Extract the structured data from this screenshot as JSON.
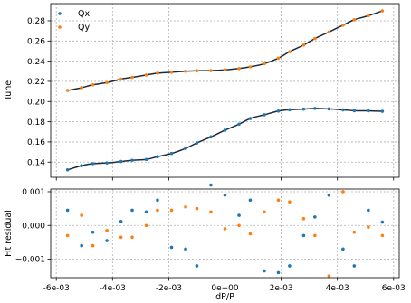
{
  "chart_data": [
    {
      "type": "scatter",
      "ylabel": "Tune",
      "xlim": [
        -0.0062,
        0.0062
      ],
      "ylim": [
        0.125,
        0.297
      ],
      "yticks": [
        0.14,
        0.16,
        0.18,
        0.2,
        0.22,
        0.24,
        0.26,
        0.28
      ],
      "ytick_labels": [
        "0.14",
        "0.16",
        "0.18",
        "0.20",
        "0.22",
        "0.24",
        "0.26",
        "0.28"
      ],
      "grid": true,
      "legend": {
        "placement": "top-left",
        "entries": [
          "Qx",
          "Qy"
        ]
      },
      "fit_line_color": "#1b2a3a",
      "series": [
        {
          "name": "Qx",
          "color": "#1f77b4",
          "x": [
            -0.0056,
            -0.0051,
            -0.0047,
            -0.0042,
            -0.0037,
            -0.0033,
            -0.0028,
            -0.0024,
            -0.0019,
            -0.0014,
            -0.001,
            -0.0005,
            0.0,
            0.0005,
            0.0009,
            0.0014,
            0.0019,
            0.0023,
            0.0028,
            0.0032,
            0.0037,
            0.0042,
            0.0046,
            0.0051,
            0.0056
          ],
          "y": [
            0.1324,
            0.1365,
            0.1385,
            0.1392,
            0.1406,
            0.1418,
            0.1427,
            0.1454,
            0.1486,
            0.1536,
            0.159,
            0.165,
            0.1716,
            0.1776,
            0.1832,
            0.1869,
            0.1906,
            0.1919,
            0.1925,
            0.1932,
            0.1927,
            0.1918,
            0.191,
            0.1908,
            0.1904
          ]
        },
        {
          "name": "Qy",
          "color": "#ff7f0e",
          "x": [
            -0.0056,
            -0.0051,
            -0.0047,
            -0.0042,
            -0.0037,
            -0.0033,
            -0.0028,
            -0.0024,
            -0.0019,
            -0.0014,
            -0.001,
            -0.0005,
            0.0,
            0.0005,
            0.0009,
            0.0014,
            0.0019,
            0.0023,
            0.0028,
            0.0032,
            0.0037,
            0.0042,
            0.0046,
            0.0051,
            0.0056
          ],
          "y": [
            0.211,
            0.2137,
            0.2166,
            0.2188,
            0.2222,
            0.224,
            0.2263,
            0.2281,
            0.229,
            0.23,
            0.2305,
            0.2307,
            0.2314,
            0.2327,
            0.2344,
            0.2375,
            0.243,
            0.2494,
            0.256,
            0.2624,
            0.2689,
            0.2757,
            0.281,
            0.285,
            0.2898
          ]
        }
      ]
    },
    {
      "type": "scatter",
      "xlabel": "dP/P",
      "ylabel": "Fit residual",
      "xlim": [
        -0.0062,
        0.0062
      ],
      "ylim": [
        -0.00155,
        0.00108
      ],
      "yticks": [
        -0.001,
        0.0,
        0.001
      ],
      "ytick_labels": [
        "−0.001",
        "0.000",
        "0.001"
      ],
      "xticks": [
        -0.006,
        -0.004,
        -0.002,
        0.0,
        0.002,
        0.004,
        0.006
      ],
      "xtick_labels": [
        "-6e-03",
        "-4e-03",
        "-2e-03",
        "0e+00",
        "2e-03",
        "4e-03",
        "6e-03"
      ],
      "grid": true,
      "series": [
        {
          "name": "Qx",
          "color": "#1f77b4",
          "x": [
            -0.0056,
            -0.0051,
            -0.0047,
            -0.0042,
            -0.0037,
            -0.0033,
            -0.0028,
            -0.0024,
            -0.0019,
            -0.0014,
            -0.001,
            -0.0005,
            0.0,
            0.0005,
            0.0009,
            0.0014,
            0.0019,
            0.0023,
            0.0028,
            0.0032,
            0.0037,
            0.0042,
            0.0046,
            0.0051,
            0.0056
          ],
          "y": [
            0.00045,
            -0.0006,
            -0.0002,
            -0.00045,
            0.00012,
            0.00045,
            0.0004,
            0.00075,
            -0.00065,
            -0.0007,
            -0.0012,
            0.0012,
            0.0009,
            0.0003,
            0.00075,
            -0.00135,
            -0.0014,
            -0.0012,
            -0.0003,
            0.00025,
            0.0009,
            -0.0007,
            -0.0012,
            0.00045,
            0.0001
          ]
        },
        {
          "name": "Qy",
          "color": "#ff7f0e",
          "x": [
            -0.0056,
            -0.0051,
            -0.0047,
            -0.0042,
            -0.0037,
            -0.0033,
            -0.0028,
            -0.0024,
            -0.0019,
            -0.0014,
            -0.001,
            -0.0005,
            0.0,
            0.0005,
            0.0009,
            0.0014,
            0.0019,
            0.0023,
            0.0028,
            0.0032,
            0.0037,
            0.0042,
            0.0046,
            0.0051,
            0.0056
          ],
          "y": [
            -0.0003,
            0.0003,
            -0.0006,
            -0.00015,
            -0.00035,
            -0.00035,
            0.0,
            0.00045,
            0.00045,
            0.00055,
            0.0005,
            0.0004,
            -0.0001,
            0.0,
            -0.00025,
            0.0004,
            0.00075,
            0.0007,
            0.0002,
            -0.0003,
            -0.0015,
            0.001,
            -0.0002,
            -5e-05,
            -0.0003
          ]
        }
      ]
    }
  ]
}
